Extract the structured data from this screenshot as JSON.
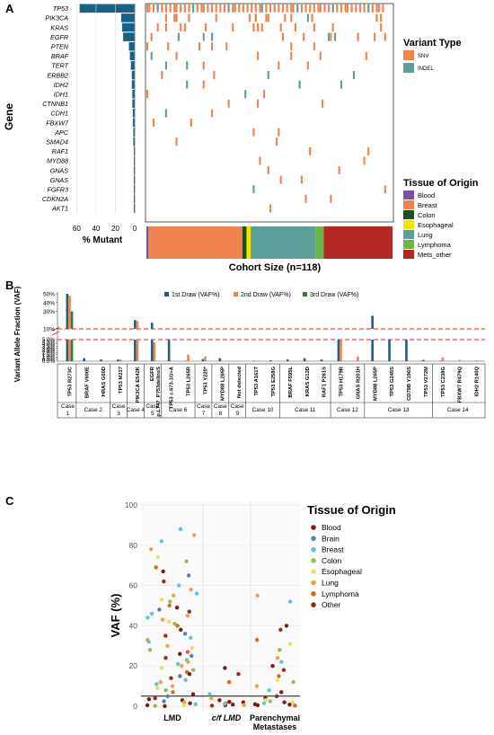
{
  "colors": {
    "bar_blue": "#1a6187",
    "snv": "#f0834e",
    "indel": "#5b9e9a",
    "blood": "#7b4fa3",
    "breast": "#f0834e",
    "colon": "#1f4e20",
    "esophageal": "#f2e600",
    "lung": "#5b9e9a",
    "lymphoma": "#6cb842",
    "mets_other": "#b42727",
    "draw1": "#1a6187",
    "draw2": "#f0834e",
    "draw3": "#2a7f3a",
    "c_blood": "#7d1c17",
    "c_brain": "#5a7fa8",
    "c_breast": "#5dc7d8",
    "c_colon": "#8fbf5a",
    "c_esoph": "#e8e06a",
    "c_lung": "#f1a14a",
    "c_lymph": "#d46b22",
    "c_other": "#9a2a20"
  },
  "panelA": {
    "letter": "A",
    "ylabel": "Gene",
    "xlabel": "% Mutant",
    "xticks": [
      "60",
      "40",
      "20",
      "0"
    ],
    "cohort_label": "Cohort Size (n=118)",
    "variant_title": "Variant Type",
    "variant_items": [
      "SNV",
      "INDEL"
    ],
    "tissue_title": "Tissue of Origin",
    "tissue_items": [
      "Blood",
      "Breast",
      "Colon",
      "Esophageal",
      "Lung",
      "Lymphoma",
      "Mets_other"
    ]
  },
  "panelB": {
    "letter": "B",
    "ylabel": "Variant Allele Fraction (VAF)",
    "legend": [
      "1st Draw (VAF%)",
      "2nd Draw (VAF%)",
      "3rd Draw (VAF%)"
    ],
    "upper_ticks": [
      "50%",
      "40%",
      "30%",
      "10%"
    ],
    "lower_ticks": [
      "5.0%",
      "4.5%",
      "4.0%",
      "3.5%",
      "3.0%",
      "2.5%",
      "2.0%",
      "1.5%",
      "1.0%",
      "0.5%",
      "0.0%"
    ],
    "cases": [
      "Case\n1",
      "Case 2",
      "Case\n3",
      "Case 4",
      "Case\n5",
      "Case 6",
      "Case\n7",
      "Case\n8",
      "Case\n9",
      "Case 10",
      "Case 11",
      "Case 12",
      "Case 13",
      "Case 14"
    ]
  },
  "panelC": {
    "letter": "C",
    "ylabel": "VAF (%)",
    "legend_title": "Tissue of Origin",
    "legend_items": [
      "Blood",
      "Brain",
      "Breast",
      "Colon",
      "Esophageal",
      "Lung",
      "Lymphoma",
      "Other"
    ],
    "yticks": [
      "100",
      "80",
      "60",
      "40",
      "20",
      "0"
    ],
    "categories": [
      "LMD",
      "c/f LMD",
      "Parenchymal\nMetastases"
    ]
  },
  "chart_data": [
    {
      "type": "bar",
      "xlabel": "% Mutant",
      "ylabel": "Gene",
      "categories": [
        "TP53",
        "PIK3CA",
        "KRAS",
        "EGFR",
        "PTEN",
        "BRAF",
        "TERT",
        "ERBB2",
        "IDH2",
        "IDH1",
        "CTNNB1",
        "CDH1",
        "FBXW7",
        "APC",
        "SMAD4",
        "RAF1",
        "MYD88",
        "GNAS",
        "GNAS",
        "FGFR3",
        "CDKN2A",
        "AKT1"
      ],
      "values": [
        57,
        14,
        13,
        12,
        6,
        5,
        4,
        3,
        3,
        2.5,
        2.5,
        2,
        2,
        1.5,
        1.5,
        1,
        1,
        1,
        1,
        1,
        1,
        1
      ],
      "xlim": [
        65,
        0
      ]
    },
    {
      "type": "heatmap",
      "title": "Cohort Size (n=118)",
      "series": [
        {
          "name": "Blood",
          "values": [
            1
          ]
        },
        {
          "name": "Breast",
          "values": [
            45
          ]
        },
        {
          "name": "Colon",
          "values": [
            2
          ]
        },
        {
          "name": "Esophageal",
          "values": [
            2
          ]
        },
        {
          "name": "Lung",
          "values": [
            31
          ]
        },
        {
          "name": "Lymphoma",
          "values": [
            4
          ]
        },
        {
          "name": "Mets_other",
          "values": [
            33
          ]
        }
      ]
    },
    {
      "type": "bar",
      "ylabel": "Variant Allele Fraction (VAF)",
      "categories": [
        "TP53 R273C",
        "BRAF V600E",
        "HRAS G60D",
        "TP53 M237",
        "PIK3CA E542K",
        "EGFR p.L747_P753delinsS",
        "TP53 c.673-1G>A",
        "TP53 L265R",
        "TP53 Y220*",
        "MYD88 L265P",
        "Not detected",
        "TP53 A161T",
        "TP53 E258G",
        "BRAF F595L",
        "KRAS G12D",
        "RAF1 P261S",
        "TP53 H179R",
        "GNAS R201H",
        "MYD88 L265P",
        "TP53 G245S",
        "CD79B Y196S",
        "TP53 V272M",
        "TP53 C238G",
        "FBXW7 R479Q",
        "IDH2 R140Q"
      ],
      "series": [
        {
          "name": "1st Draw (VAF%)",
          "values": [
            50,
            0.7,
            0.4,
            0.4,
            20,
            17,
            5,
            0.1,
            0.5,
            0.7,
            0,
            0.1,
            0.2,
            0.4,
            0.7,
            0.4,
            5,
            0,
            25,
            5,
            5,
            0.3,
            0.1,
            0,
            0
          ]
        },
        {
          "name": "2nd Draw (VAF%)",
          "values": [
            48,
            0,
            0,
            0.4,
            19,
            4.4,
            0,
            1.5,
            1.1,
            0,
            0,
            0,
            0,
            0,
            0,
            0,
            5,
            1.1,
            0,
            0,
            0,
            0,
            0.9,
            0.3,
            0.2
          ]
        },
        {
          "name": "3rd Draw (VAF%)",
          "values": [
            30,
            0,
            0,
            0,
            0,
            0,
            0,
            0,
            0,
            0,
            0,
            0,
            0,
            0,
            0,
            0,
            0,
            0,
            0,
            0,
            0,
            0,
            0,
            0,
            0
          ]
        }
      ]
    },
    {
      "type": "scatter",
      "ylabel": "VAF (%)",
      "categories": [
        "LMD",
        "c/f LMD",
        "Parenchymal Metastases"
      ],
      "ylim": [
        0,
        100
      ],
      "series": [
        {
          "name": "LMD",
          "values": [
            88,
            85,
            82,
            78,
            74,
            72,
            69,
            67,
            65,
            62,
            60,
            58,
            56,
            55,
            53,
            52,
            50,
            49,
            48,
            47,
            46,
            45,
            44,
            43,
            42,
            41,
            40,
            38,
            36,
            35,
            34,
            33,
            32,
            30,
            29,
            28,
            27,
            26,
            25,
            24,
            23,
            22,
            21,
            20,
            19,
            18,
            17,
            16,
            15,
            14,
            13,
            12,
            11,
            10,
            9,
            8,
            7,
            6,
            5,
            4,
            3,
            2,
            1,
            0.5,
            0.3,
            0.2,
            0.1,
            1.5,
            2.5,
            3.5
          ]
        },
        {
          "name": "c/f LMD",
          "values": [
            19,
            16,
            12,
            6,
            4,
            3,
            2,
            1.5,
            1,
            0.8,
            0.5,
            0.3,
            2.2,
            1.2,
            0.6
          ]
        },
        {
          "name": "Parenchymal Metastases",
          "values": [
            55,
            52,
            40,
            38,
            33,
            31,
            28,
            24,
            22,
            20,
            18,
            15,
            13,
            12,
            10,
            8,
            7,
            5,
            4,
            3,
            2.5,
            2,
            1.5,
            1,
            0.5,
            0.3,
            1.8,
            0.8
          ]
        }
      ]
    }
  ]
}
